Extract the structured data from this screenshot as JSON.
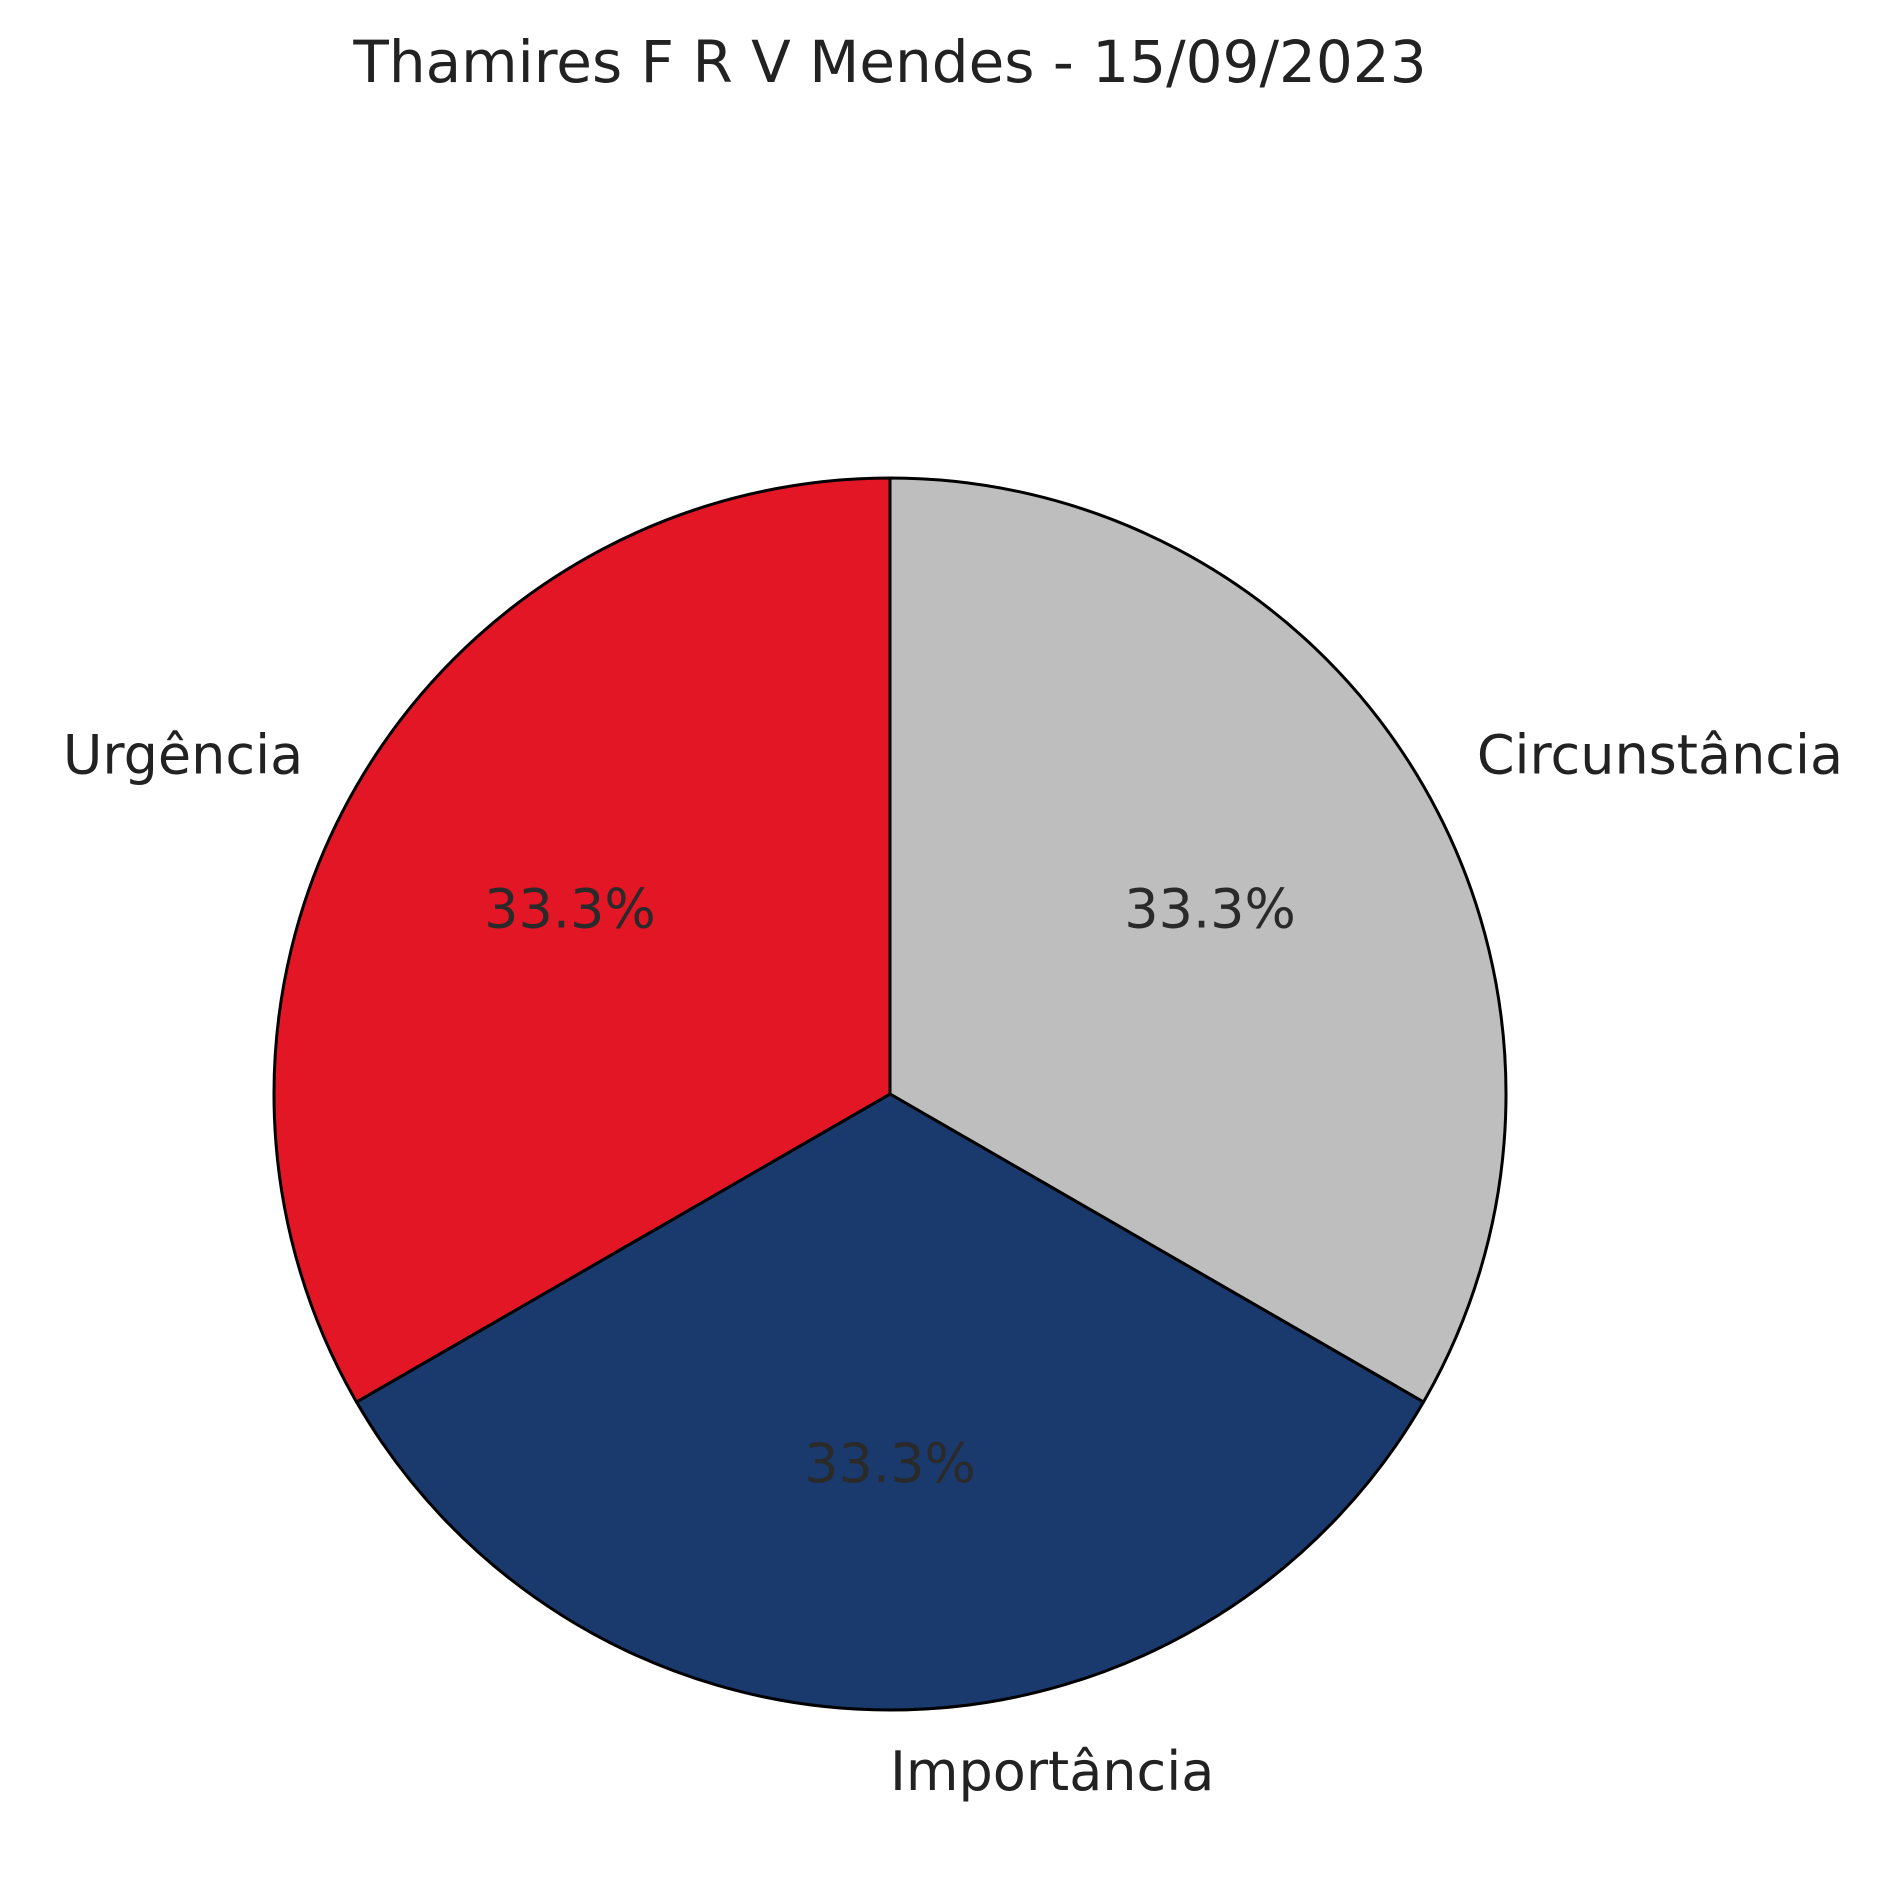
{
  "chart_data": {
    "type": "pie",
    "title": "Thamires F R V Mendes - 15/09/2023",
    "slices": [
      {
        "label": "Circunstância",
        "value": 33.3,
        "pct_label": "33.3%",
        "color": "#bdbebd"
      },
      {
        "label": "Importância",
        "value": 33.3,
        "pct_label": "33.3%",
        "color": "#1a3a6e"
      },
      {
        "label": "Urgência",
        "value": 33.3,
        "pct_label": "33.3%",
        "color": "#e31625"
      }
    ],
    "start_angle": "top",
    "direction": "clockwise",
    "edge_color": "#000000",
    "legend": "none"
  }
}
